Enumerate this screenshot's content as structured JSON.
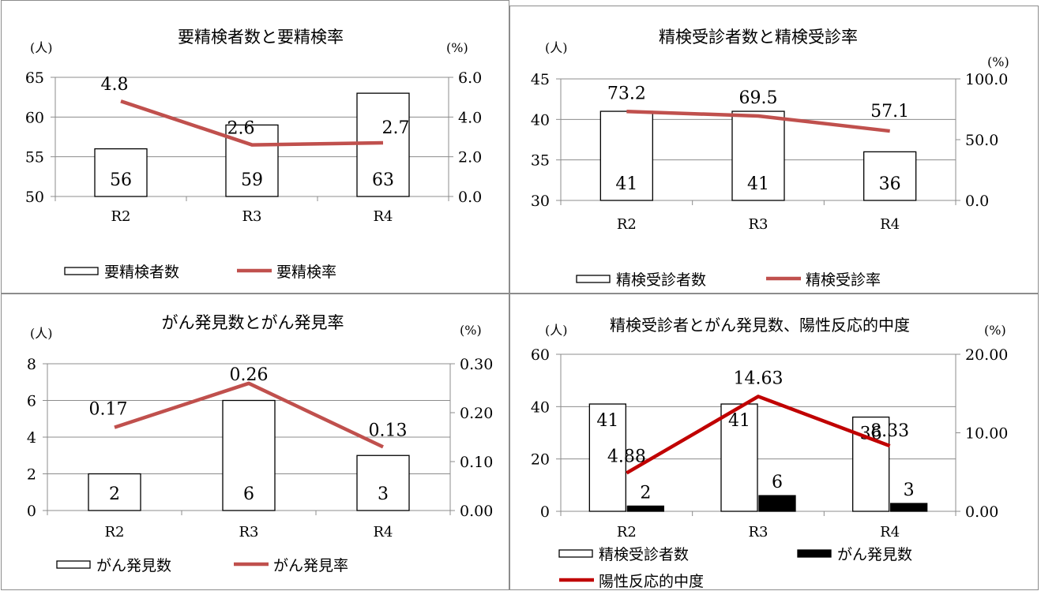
{
  "chart_data": [
    {
      "type": "bar",
      "title": "要精検者数と要精検率",
      "y_unit_left": "(人)",
      "y_unit_right": "(%)",
      "categories": [
        "R2",
        "R3",
        "R4"
      ],
      "ylim": [
        50,
        65
      ],
      "yticks": [
        "50",
        "55",
        "60",
        "65"
      ],
      "y2lim": [
        0,
        6
      ],
      "y2ticks": [
        "0.0",
        "2.0",
        "4.0",
        "6.0"
      ],
      "grid": true,
      "legend_position": "bottom",
      "series": [
        {
          "name": "要精検者数",
          "kind": "bar",
          "fill": "#ffffff",
          "values": [
            56,
            59,
            63
          ],
          "labels": [
            "56",
            "59",
            "63"
          ]
        },
        {
          "name": "要精検率",
          "kind": "line",
          "axis": "right",
          "color": "#c0504d",
          "values": [
            4.8,
            2.6,
            2.7
          ],
          "labels": [
            "4.8",
            "2.6",
            "2.7"
          ]
        }
      ]
    },
    {
      "type": "bar",
      "title": "精検受診者数と精検受診率",
      "y_unit_left": "(人)",
      "y_unit_right": "(%)",
      "categories": [
        "R2",
        "R3",
        "R4"
      ],
      "ylim": [
        30,
        45
      ],
      "yticks": [
        "30",
        "35",
        "40",
        "45"
      ],
      "y2lim": [
        0,
        100
      ],
      "y2ticks": [
        "0.0",
        "50.0",
        "100.0"
      ],
      "grid": true,
      "legend_position": "bottom",
      "series": [
        {
          "name": "精検受診者数",
          "kind": "bar",
          "fill": "#ffffff",
          "values": [
            41,
            41,
            36
          ],
          "labels": [
            "41",
            "41",
            "36"
          ]
        },
        {
          "name": "精検受診率",
          "kind": "line",
          "axis": "right",
          "color": "#c0504d",
          "values": [
            73.2,
            69.5,
            57.1
          ],
          "labels": [
            "73.2",
            "69.5",
            "57.1"
          ]
        }
      ]
    },
    {
      "type": "bar",
      "title": "がん発見数とがん発見率",
      "y_unit_left": "(人)",
      "y_unit_right": "(%)",
      "categories": [
        "R2",
        "R3",
        "R4"
      ],
      "ylim": [
        0,
        8
      ],
      "yticks": [
        "0",
        "2",
        "4",
        "6",
        "8"
      ],
      "y2lim": [
        0,
        0.3
      ],
      "y2ticks": [
        "0.00",
        "0.10",
        "0.20",
        "0.30"
      ],
      "grid": true,
      "legend_position": "bottom",
      "series": [
        {
          "name": "がん発見数",
          "kind": "bar",
          "fill": "#ffffff",
          "values": [
            2,
            6,
            3
          ],
          "labels": [
            "2",
            "6",
            "3"
          ]
        },
        {
          "name": "がん発見率",
          "kind": "line",
          "axis": "right",
          "color": "#c0504d",
          "values": [
            0.17,
            0.26,
            0.13
          ],
          "labels": [
            "0.17",
            "0.26",
            "0.13"
          ]
        }
      ]
    },
    {
      "type": "bar",
      "title": "精検受診者とがん発見数、陽性反応的中度",
      "y_unit_left": "(人)",
      "y_unit_right": "(%)",
      "categories": [
        "R2",
        "R3",
        "R4"
      ],
      "ylim": [
        0,
        60
      ],
      "yticks": [
        "0",
        "20",
        "40",
        "60"
      ],
      "y2lim": [
        0,
        20
      ],
      "y2ticks": [
        "0.00",
        "10.00",
        "20.00"
      ],
      "grid": true,
      "legend_position": "bottom",
      "series": [
        {
          "name": "精検受診者数",
          "kind": "bar",
          "fill": "#ffffff",
          "values": [
            41,
            41,
            36
          ],
          "labels": [
            "41",
            "41",
            "36"
          ]
        },
        {
          "name": "がん発見数",
          "kind": "bar",
          "fill": "#000000",
          "values": [
            2,
            6,
            3
          ],
          "labels": [
            "2",
            "6",
            "3"
          ]
        },
        {
          "name": "陽性反応的中度",
          "kind": "line",
          "axis": "right",
          "color": "#c00000",
          "values": [
            4.88,
            14.63,
            8.33
          ],
          "labels": [
            "4.88",
            "14.63",
            "8.33"
          ]
        }
      ]
    }
  ]
}
